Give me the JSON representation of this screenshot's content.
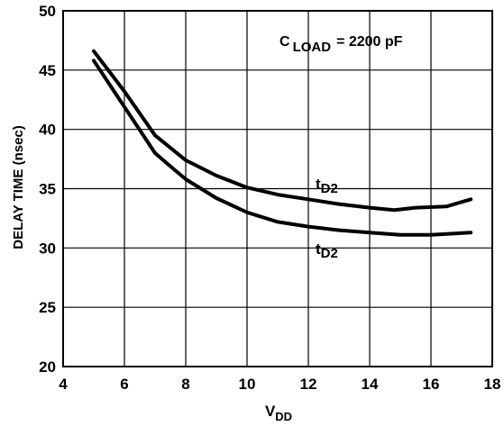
{
  "chart_data": {
    "type": "line",
    "xlabel": {
      "main": "V",
      "sub": "DD"
    },
    "ylabel": "DELAY TIME (nsec)",
    "xlim": [
      4,
      18
    ],
    "ylim": [
      20,
      50
    ],
    "xticks": [
      4,
      6,
      8,
      10,
      12,
      14,
      16,
      18
    ],
    "yticks": [
      20,
      25,
      30,
      35,
      40,
      45,
      50
    ],
    "grid": true,
    "condition": {
      "main": "C",
      "sub": "LOAD",
      "rest": "= 2200 pF"
    },
    "series": [
      {
        "name": {
          "main": "t",
          "sub": "D2"
        },
        "x": [
          5.0,
          6.0,
          7.0,
          8.0,
          9.0,
          10.0,
          11.0,
          12.0,
          13.0,
          14.0,
          14.8,
          15.5,
          16.5,
          17.3
        ],
        "y": [
          46.6,
          43.2,
          39.5,
          37.4,
          36.1,
          35.1,
          34.5,
          34.1,
          33.7,
          33.4,
          33.2,
          33.4,
          33.5,
          34.1
        ]
      },
      {
        "name": {
          "main": "t",
          "sub": "D2"
        },
        "x": [
          5.0,
          6.0,
          7.0,
          7.4,
          8.0,
          9.0,
          10.0,
          11.0,
          12.0,
          13.0,
          14.0,
          15.0,
          16.0,
          17.3
        ],
        "y": [
          45.8,
          41.9,
          38.0,
          37.1,
          35.8,
          34.2,
          33.0,
          32.2,
          31.8,
          31.5,
          31.3,
          31.1,
          31.1,
          31.3
        ]
      }
    ]
  }
}
